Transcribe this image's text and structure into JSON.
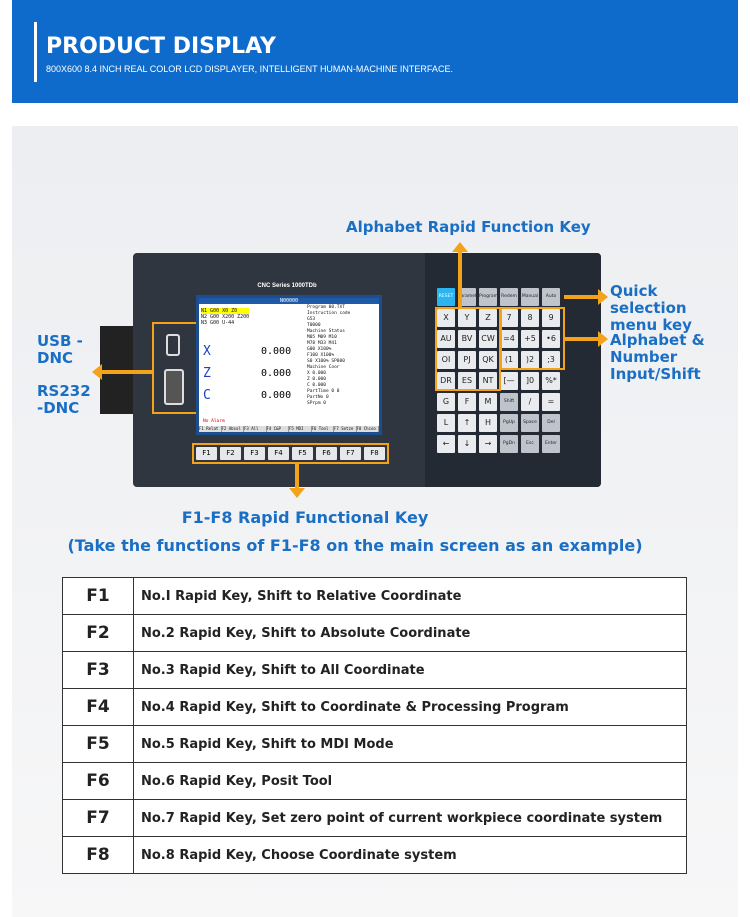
{
  "banner": {
    "title": "PRODUCT DISPLAY",
    "subtitle": "800X600 8.4 INCH REAL COLOR LCD DISPLAYER, INTELLIGENT HUMAN-MACHINE INTERFACE."
  },
  "callouts": {
    "alpha_rapid": "Alphabet Rapid Function Key",
    "quick_sel": "Quick selection menu key",
    "alpha_num": "Alphabet & Number Input/Shift",
    "usb": "USB -DNC",
    "rs232": "RS232 -DNC",
    "fkey_title": "F1-F8 Rapid Functional Key",
    "fkey_sub": "(Take the functions of F1-F8 on the main screen as an example)"
  },
  "screen": {
    "header": "N00000",
    "brand": "CNC Series 1000TDb",
    "program_lines": [
      "N1 G00 X0 Z0",
      "N2 G00 X200 Z200",
      "N3 G00 U-44"
    ],
    "axes": [
      {
        "name": "X",
        "value": "0.000"
      },
      {
        "name": "Z",
        "value": "0.000"
      },
      {
        "name": "C",
        "value": "0.000"
      }
    ],
    "side": [
      "Program 00.TXT",
      "Instruction code",
      "G53",
      "T0000",
      "Machine Status",
      "M05 M09 M10",
      "M78 M33 M41",
      "G00 X100%",
      "F100 X100%",
      "S0 X100% SP000",
      "Machine Coor",
      "X 0.000",
      "Z 0.000",
      "C 0.000",
      "PartTime 0 0",
      "PartNo 0",
      "SPrpm 0"
    ],
    "alarm": "No Alarm",
    "fbar": [
      "F1 Relat",
      "F2 Absol",
      "F3 All",
      "F4 C&P",
      "F5 MDI",
      "F6 Tool",
      "F7 Setze",
      "F8 Chcoo"
    ]
  },
  "fkeys": [
    "F1",
    "F2",
    "F3",
    "F4",
    "F5",
    "F6",
    "F7",
    "F8"
  ],
  "keypad": [
    "RESET",
    "Parameter",
    "Program",
    "Redem",
    "Manual",
    "Auto",
    "X",
    "Y",
    "Z",
    "7",
    "8",
    "9",
    "AU",
    "BV",
    "CW",
    "=4",
    "+5",
    "•6",
    "OI",
    "PJ",
    "QK",
    "(1",
    ")2",
    ";3",
    "DR",
    "ES",
    "NT",
    "[—",
    "]0",
    "%*",
    "G",
    "F",
    "M",
    "Shift",
    "/",
    "=",
    "L",
    "↑",
    "H",
    "PgUp",
    "Space",
    "Del",
    "←",
    "↓",
    "→",
    "PgDn",
    "Esc",
    "Enter"
  ],
  "table": [
    {
      "key": "F1",
      "desc": "No.I Rapid Key, Shift to Relative Coordinate"
    },
    {
      "key": "F2",
      "desc": "No.2 Rapid Key, Shift to Absolute Coordinate"
    },
    {
      "key": "F3",
      "desc": "No.3 Rapid Key, Shift to All Coordinate"
    },
    {
      "key": "F4",
      "desc": "No.4 Rapid Key, Shift to Coordinate & Processing Program"
    },
    {
      "key": "F5",
      "desc": "No.5 Rapid Key, Shift to MDI Mode"
    },
    {
      "key": "F6",
      "desc": "No.6 Rapid Key, Posit Tool"
    },
    {
      "key": "F7",
      "desc": "No.7 Rapid Key, Set zero point of current workpiece coordinate system"
    },
    {
      "key": "F8",
      "desc": "No.8 Rapid Key, Choose Coordinate system"
    }
  ],
  "colors": {
    "brand_blue": "#0e6bcb",
    "callout_blue": "#1a6fc4",
    "highlight_orange": "#f3a21a"
  }
}
